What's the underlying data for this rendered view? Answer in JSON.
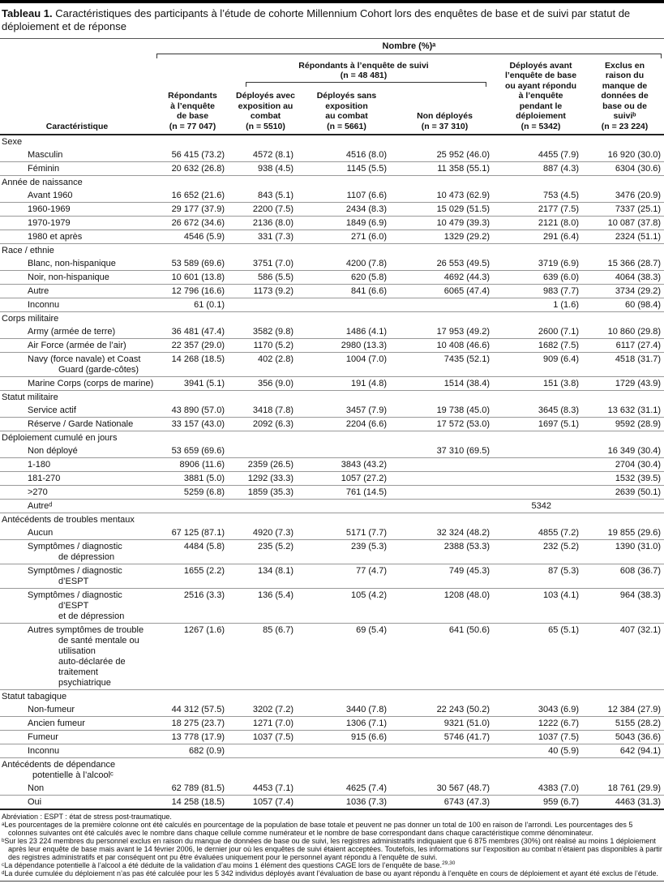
{
  "title": {
    "label": "Tableau 1.",
    "text": "Caractéristiques des participants à l’étude de cohorte Millennium Cohort lors des enquêtes de base et de suivi par statut de déploiement et de réponse"
  },
  "header": {
    "nombre": "Nombre (%)ᵃ",
    "caracteristique": "Caractéristique",
    "suivi_group": "Répondants à l’enquête de suivi\n(n = 48 481)",
    "col_base": "Répondants\nà l’enquête\nde base\n(n = 77 047)",
    "col_avec_combat": "Déployés avec\nexposition au\ncombat\n(n = 5510)",
    "col_sans_combat": "Déployés sans\nexposition\nau combat\n(n = 5661)",
    "col_non_deployes": "Non déployés\n(n = 37 310)",
    "col_deployes_avant": "Déployés avant\nl’enquête de base\nou ayant répondu\nà l’enquête\npendant le\ndéploiement\n(n = 5342)",
    "col_exclus": "Exclus en\nraison du\nmanque de\ndonnées de\nbase ou de\nsuiviᵇ\n(n = 23 224)"
  },
  "table": {
    "sections": [
      {
        "header": "Sexe",
        "rows": [
          {
            "label": "Masculin",
            "values": [
              "56 415 (73.2)",
              "4572 (8.1)",
              "4516 (8.0)",
              "25 952 (46.0)",
              "4455 (7.9)",
              "16 920 (30.0)"
            ]
          },
          {
            "label": "Féminin",
            "values": [
              "20 632 (26.8)",
              "938 (4.5)",
              "1145 (5.5)",
              "11 358 (55.1)",
              "887 (4.3)",
              "6304 (30.6)"
            ]
          }
        ]
      },
      {
        "header": "Année de naissance",
        "rows": [
          {
            "label": "Avant 1960",
            "values": [
              "16 652 (21.6)",
              "843 (5.1)",
              "1107 (6.6)",
              "10 473 (62.9)",
              "753 (4.5)",
              "3476 (20.9)"
            ]
          },
          {
            "label": "1960-1969",
            "values": [
              "29 177 (37.9)",
              "2200 (7.5)",
              "2434 (8.3)",
              "15 029 (51.5)",
              "2177 (7.5)",
              "7337 (25.1)"
            ]
          },
          {
            "label": "1970-1979",
            "values": [
              "26 672 (34.6)",
              "2136 (8.0)",
              "1849 (6.9)",
              "10 479 (39.3)",
              "2121 (8.0)",
              "10 087 (37.8)"
            ]
          },
          {
            "label": "1980 et après",
            "values": [
              "4546 (5.9)",
              "331 (7.3)",
              "271 (6.0)",
              "1329 (29.2)",
              "291 (6.4)",
              "2324 (51.1)"
            ]
          }
        ]
      },
      {
        "header": "Race / ethnie",
        "rows": [
          {
            "label": "Blanc, non-hispanique",
            "values": [
              "53 589 (69.6)",
              "3751 (7.0)",
              "4200 (7.8)",
              "26 553 (49.5)",
              "3719 (6.9)",
              "15 366 (28.7)"
            ]
          },
          {
            "label": "Noir, non-hispanique",
            "values": [
              "10 601 (13.8)",
              "586 (5.5)",
              "620 (5.8)",
              "4692 (44.3)",
              "639 (6.0)",
              "4064 (38.3)"
            ]
          },
          {
            "label": "Autre",
            "values": [
              "12 796 (16.6)",
              "1173 (9.2)",
              "841 (6.6)",
              "6065 (47.4)",
              "983 (7.7)",
              "3734 (29.2)"
            ]
          },
          {
            "label": "Inconnu",
            "values": [
              "61 (0.1)",
              "",
              "",
              "",
              "1 (1.6)",
              "60 (98.4)"
            ]
          }
        ]
      },
      {
        "header": "Corps militaire",
        "rows": [
          {
            "label": "Army (armée de terre)",
            "values": [
              "36 481 (47.4)",
              "3582 (9.8)",
              "1486 (4.1)",
              "17 953 (49.2)",
              "2600 (7.1)",
              "10 860 (29.8)"
            ]
          },
          {
            "label": "Air Force (armée de l’air)",
            "values": [
              "22 357 (29.0)",
              "1170 (5.2)",
              "2980 (13.3)",
              "10 408 (46.6)",
              "1682 (7.5)",
              "6117 (27.4)"
            ]
          },
          {
            "label": "Navy (force navale) et Coast\nGuard (garde-côtes)",
            "values": [
              "14 268 (18.5)",
              "402 (2.8)",
              "1004 (7.0)",
              "7435 (52.1)",
              "909 (6.4)",
              "4518 (31.7)"
            ]
          },
          {
            "label": "Marine Corps (corps de marine)",
            "values": [
              "3941 (5.1)",
              "356 (9.0)",
              "191 (4.8)",
              "1514 (38.4)",
              "151 (3.8)",
              "1729 (43.9)"
            ]
          }
        ]
      },
      {
        "header": "Statut militaire",
        "rows": [
          {
            "label": "Service actif",
            "values": [
              "43 890 (57.0)",
              "3418 (7.8)",
              "3457 (7.9)",
              "19 738 (45.0)",
              "3645 (8.3)",
              "13 632 (31.1)"
            ]
          },
          {
            "label": "Réserve / Garde Nationale",
            "values": [
              "33 157 (43.0)",
              "2092 (6.3)",
              "2204 (6.6)",
              "17 572 (53.0)",
              "1697 (5.1)",
              "9592 (28.9)"
            ]
          }
        ]
      },
      {
        "header": "Déploiement cumulé en jours",
        "rows": [
          {
            "label": "Non déployé",
            "values": [
              "53 659 (69.6)",
              "",
              "",
              "37 310 (69.5)",
              "",
              "16 349 (30.4)"
            ]
          },
          {
            "label": "1-180",
            "values": [
              "8906 (11.6)",
              "2359 (26.5)",
              "3843 (43.2)",
              "",
              "",
              "2704 (30.4)"
            ]
          },
          {
            "label": "181-270",
            "values": [
              "3881 (5.0)",
              "1292 (33.3)",
              "1057 (27.2)",
              "",
              "",
              "1532 (39.5)"
            ]
          },
          {
            "label": ">270",
            "values": [
              "5259 (6.8)",
              "1859 (35.3)",
              "761 (14.5)",
              "",
              "",
              "2639 (50.1)"
            ]
          },
          {
            "label": "Autreᵈ",
            "values": [
              "",
              "",
              "",
              "",
              "5342",
              ""
            ]
          }
        ]
      },
      {
        "header": "Antécédents de troubles mentaux",
        "rows": [
          {
            "label": "Aucun",
            "values": [
              "67 125 (87.1)",
              "4920 (7.3)",
              "5171 (7.7)",
              "32 324 (48.2)",
              "4855 (7.2)",
              "19 855 (29.6)"
            ]
          },
          {
            "label": "Symptômes / diagnostic\nde dépression",
            "values": [
              "4484 (5.8)",
              "235 (5.2)",
              "239 (5.3)",
              "2388 (53.3)",
              "232 (5.2)",
              "1390 (31.0)"
            ]
          },
          {
            "label": "Symptômes / diagnostic d’ESPT",
            "values": [
              "1655 (2.2)",
              "134 (8.1)",
              "77 (4.7)",
              "749 (45.3)",
              "87 (5.3)",
              "608 (36.7)"
            ]
          },
          {
            "label": "Symptômes / diagnostic d’ESPT\net de dépression",
            "values": [
              "2516 (3.3)",
              "136 (5.4)",
              "105 (4.2)",
              "1208 (48.0)",
              "103 (4.1)",
              "964 (38.3)"
            ]
          },
          {
            "label": "Autres symptômes de trouble\nde santé mentale ou utilisation\nauto-déclarée de traitement\npsychiatrique",
            "values": [
              "1267 (1.6)",
              "85 (6.7)",
              "69 (5.4)",
              "641 (50.6)",
              "65 (5.1)",
              "407 (32.1)"
            ]
          }
        ]
      },
      {
        "header": "Statut tabagique",
        "rows": [
          {
            "label": "Non-fumeur",
            "values": [
              "44 312 (57.5)",
              "3202 (7.2)",
              "3440 (7.8)",
              "22 243 (50.2)",
              "3043 (6.9)",
              "12 384 (27.9)"
            ]
          },
          {
            "label": "Ancien fumeur",
            "values": [
              "18 275 (23.7)",
              "1271 (7.0)",
              "1306 (7.1)",
              "9321 (51.0)",
              "1222 (6.7)",
              "5155 (28.2)"
            ]
          },
          {
            "label": "Fumeur",
            "values": [
              "13 778 (17.9)",
              "1037 (7.5)",
              "915 (6.6)",
              "5746 (41.7)",
              "1037 (7.5)",
              "5043 (36.6)"
            ]
          },
          {
            "label": "Inconnu",
            "values": [
              "682 (0.9)",
              "",
              "",
              "",
              "40 (5.9)",
              "642 (94.1)"
            ]
          }
        ]
      },
      {
        "header": "Antécédents de dépendance\npotentielle à l’alcoolᶜ",
        "rows": [
          {
            "label": "Non",
            "values": [
              "62 789 (81.5)",
              "4453 (7.1)",
              "4625 (7.4)",
              "30 567 (48.7)",
              "4383 (7.0)",
              "18 761 (29.9)"
            ]
          },
          {
            "label": "Oui",
            "values": [
              "14 258 (18.5)",
              "1057 (7.4)",
              "1036 (7.3)",
              "6743 (47.3)",
              "959 (6.7)",
              "4463 (31.3)"
            ]
          }
        ]
      }
    ]
  },
  "footer": {
    "abbreviation": "Abréviation : ESPT : état de stress post-traumatique.",
    "notes": [
      {
        "text": "ᵃLes pourcentages de la première colonne ont été calculés en pourcentage de la population de base totale et peuvent ne pas donner un total de 100 en raison de l’arrondi. Les pourcentages des 5 colonnes suivantes ont été calculés avec le nombre dans chaque cellule comme numérateur et le nombre de base correspondant dans chaque caractéristique comme dénominateur."
      },
      {
        "text": "ᵇSur les 23 224 membres du personnel exclus en raison du manque de données de base ou de suivi, les registres administratifs indiquaient que 6 875 membres (30%) ont réalisé au moins 1 déploiement après leur enquête de base mais avant le 14 février 2006, le dernier jour où les enquêtes de suivi étaient acceptées. Toutefois, les informations sur l’exposition au combat n’étaient pas disponibles à partir des registres administratifs et par conséquent ont pu être évaluées uniquement pour le personnel ayant répondu à l’enquête de suivi."
      },
      {
        "text": "ᶜLa dépendance potentielle à l’alcool a été déduite de la validation d’au moins 1 élément des questions CAGE lors de l’enquête de base.",
        "refs": "29,30"
      },
      {
        "text": "ᵈLa durée cumulée du déploiement n’as pas été calculée pour les 5 342 individus déployés avant l’évaluation de base ou ayant répondu à l’enquête en cours de déploiement et ayant été exclus de l’étude."
      }
    ]
  }
}
